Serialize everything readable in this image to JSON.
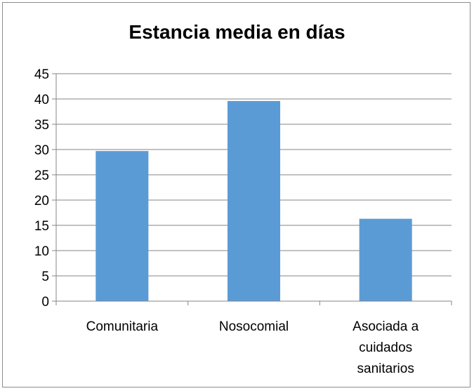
{
  "chart_data": {
    "type": "bar",
    "title": "Estancia media en días",
    "categories": [
      "Comunitaria",
      "Nosocomial",
      "Asociada a cuidados sanitarios"
    ],
    "category_lines": [
      [
        "Comunitaria"
      ],
      [
        "Nosocomial"
      ],
      [
        "Asociada a",
        "cuidados",
        "sanitarios"
      ]
    ],
    "values": [
      29.7,
      39.6,
      16.3
    ],
    "ylim": [
      0,
      45
    ],
    "yticks": [
      0,
      5,
      10,
      15,
      20,
      25,
      30,
      35,
      40,
      45
    ],
    "grid": true,
    "bar_color": "#5b9bd5",
    "grid_color": "#868686"
  }
}
